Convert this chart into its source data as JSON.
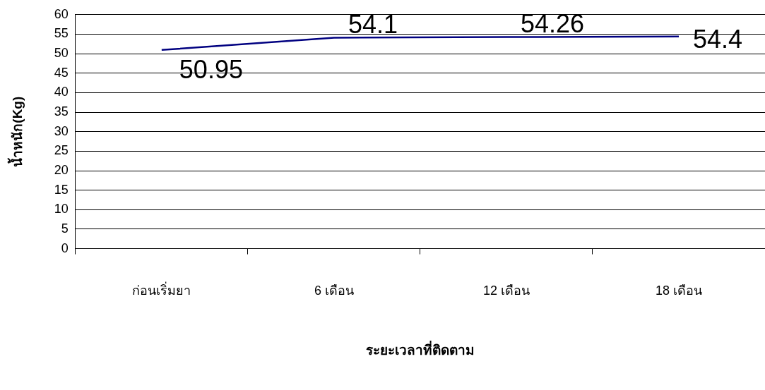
{
  "chart_data": {
    "type": "line",
    "xlabel": "ระยะเวลาที่ติดตาม",
    "ylabel": "น้ำหนัก(Kg)",
    "categories": [
      "ก่อนเริ่มยา",
      "6 เดือน",
      "12 เดือน",
      "18 เดือน"
    ],
    "series": [
      {
        "color": "#000080",
        "values": [
          50.95,
          54.1,
          54.26,
          54.4
        ]
      }
    ],
    "ylim": [
      0,
      60
    ],
    "yticks": [
      0,
      5,
      10,
      15,
      20,
      25,
      30,
      35,
      40,
      45,
      50,
      55,
      60
    ],
    "grid": "y",
    "legend": false,
    "marker": "none",
    "data_labels": true
  }
}
